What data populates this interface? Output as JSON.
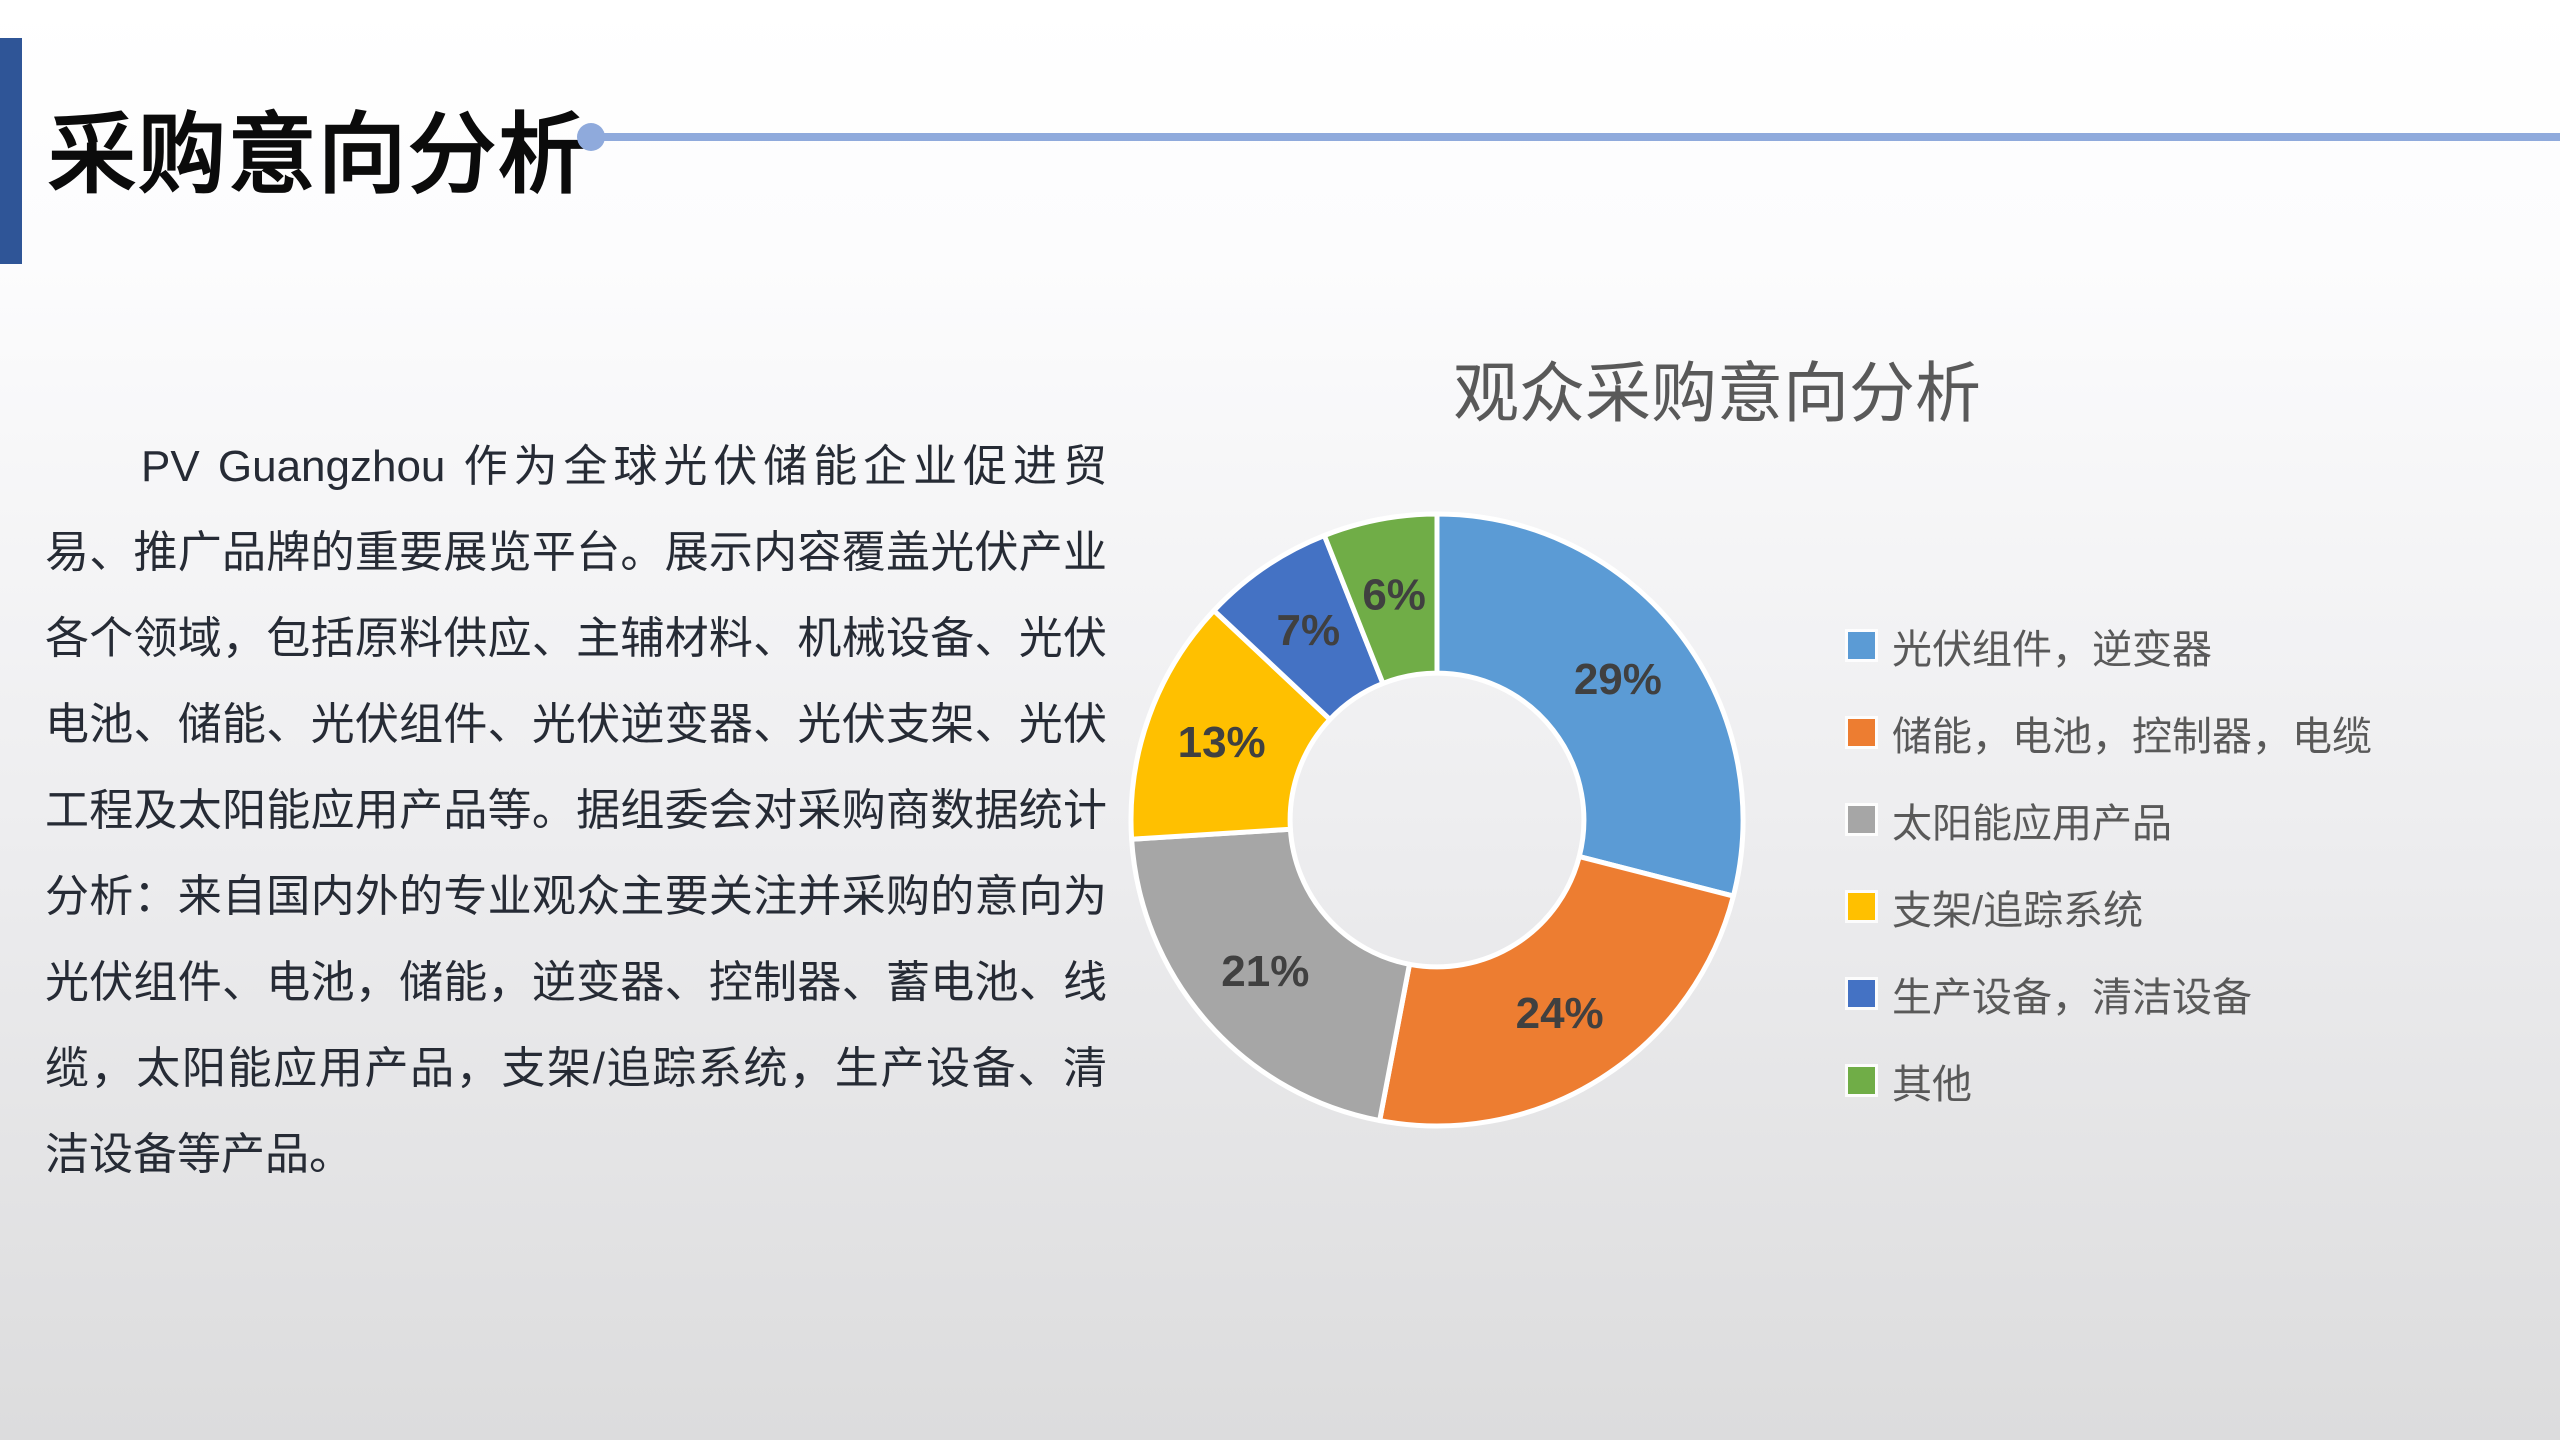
{
  "header": {
    "title": "采购意向分析",
    "accent_color": "#2F5597",
    "rule_color": "#8FAADC"
  },
  "body": {
    "paragraph": "PV Guangzhou 作为全球光伏储能企业促进贸易、推广品牌的重要展览平台。展示内容覆盖光伏产业各个领域，包括原料供应、主辅材料、机械设备、光伏电池、储能、光伏组件、光伏逆变器、光伏支架、光伏工程及太阳能应用产品等。据组委会对采购商数据统计分析：来自国内外的专业观众主要关注并采购的意向为光伏组件、电池，储能，逆变器、控制器、蓄电池、线缆，太阳能应用产品，支架/追踪系统，生产设备、清洁设备等产品。"
  },
  "chart_data": {
    "type": "pie",
    "subtype": "donut",
    "title": "观众采购意向分析",
    "categories": [
      "光伏组件，逆变器",
      "储能，电池，控制器，电缆",
      "太阳能应用产品",
      "支架/追踪系统",
      "生产设备，清洁设备",
      "其他"
    ],
    "values": [
      29,
      24,
      21,
      13,
      7,
      6
    ],
    "data_labels": [
      "29%",
      "24%",
      "21%",
      "13%",
      "7%",
      "6%"
    ],
    "colors": [
      "#5B9BD5",
      "#ED7D31",
      "#A6A6A6",
      "#FFC000",
      "#4472C4",
      "#70AD47"
    ],
    "label_color": "#404040",
    "slice_border_color": "#FFFFFF",
    "legend_position": "right",
    "start_angle_deg": 0,
    "direction": "clockwise",
    "donut_hole_ratio": 0.48
  }
}
